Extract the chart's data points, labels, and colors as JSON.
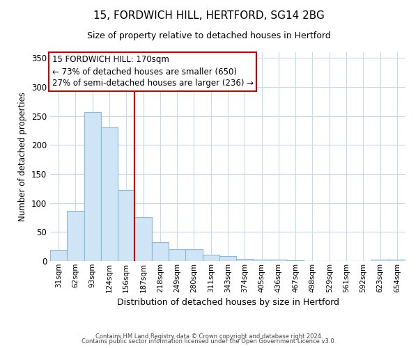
{
  "title1": "15, FORDWICH HILL, HERTFORD, SG14 2BG",
  "title2": "Size of property relative to detached houses in Hertford",
  "xlabel": "Distribution of detached houses by size in Hertford",
  "ylabel": "Number of detached properties",
  "bar_labels": [
    "31sqm",
    "62sqm",
    "93sqm",
    "124sqm",
    "156sqm",
    "187sqm",
    "218sqm",
    "249sqm",
    "280sqm",
    "311sqm",
    "343sqm",
    "374sqm",
    "405sqm",
    "436sqm",
    "467sqm",
    "498sqm",
    "529sqm",
    "561sqm",
    "592sqm",
    "623sqm",
    "654sqm"
  ],
  "bar_values": [
    19,
    86,
    257,
    230,
    122,
    76,
    33,
    20,
    20,
    11,
    9,
    4,
    2,
    2,
    1,
    0,
    0,
    0,
    0,
    2,
    2
  ],
  "bar_color": "#cfe4f5",
  "bar_edgecolor": "#87b9d8",
  "vline_color": "#cc0000",
  "ylim": [
    0,
    360
  ],
  "yticks": [
    0,
    50,
    100,
    150,
    200,
    250,
    300,
    350
  ],
  "annotation_title": "15 FORDWICH HILL: 170sqm",
  "annotation_line1": "← 73% of detached houses are smaller (650)",
  "annotation_line2": "27% of semi-detached houses are larger (236) →",
  "annotation_box_color": "#ffffff",
  "annotation_border_color": "#cc0000",
  "footer1": "Contains HM Land Registry data © Crown copyright and database right 2024.",
  "footer2": "Contains public sector information licensed under the Open Government Licence v3.0."
}
